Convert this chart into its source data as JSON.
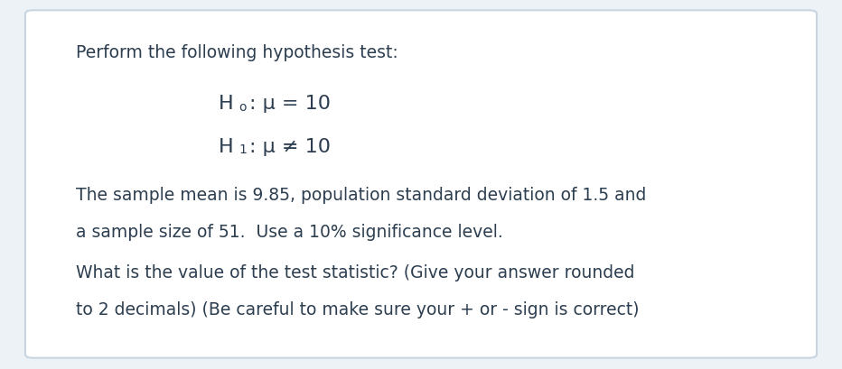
{
  "bg_color": "#edf2f7",
  "card_color": "#ffffff",
  "border_color": "#c8d4e0",
  "text_color": "#2c3e50",
  "title": "Perform the following hypothesis test:",
  "body1_line1": "The sample mean is 9.85, population standard deviation of 1.5 and",
  "body1_line2": "a sample size of 51.  Use a 10% significance level.",
  "body2_line1": "What is the value of the test statistic? (Give your answer rounded",
  "body2_line2": "to 2 decimals) (Be careful to make sure your + or - sign is correct)",
  "font_family": "DejaVu Sans",
  "title_fontsize": 13.5,
  "hypothesis_fontsize": 16,
  "body_fontsize": 13.5
}
